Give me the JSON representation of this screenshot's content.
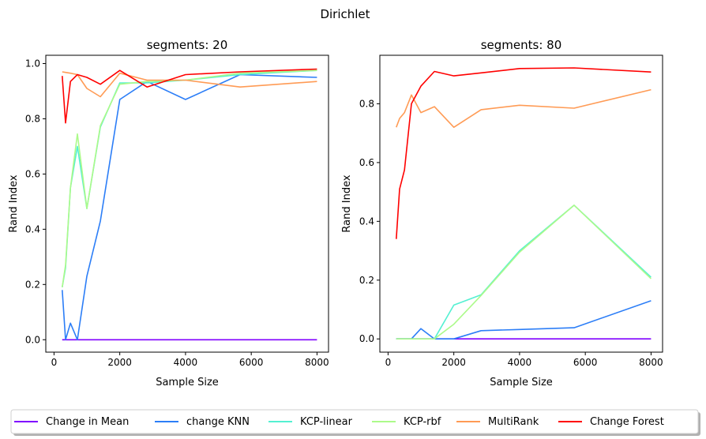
{
  "suptitle": "Dirichlet",
  "colors": {
    "Change in Mean": "#8000ff",
    "change KNN": "#2c7ef7",
    "KCP-linear": "#54f0d2",
    "KCP-rbf": "#acfa8a",
    "MultiRank": "#ff9b55",
    "Change Forest": "#ff0000"
  },
  "legend": {
    "placement": "bottom-center",
    "entries": [
      "Change in Mean",
      "change KNN",
      "KCP-linear",
      "KCP-rbf",
      "MultiRank",
      "Change Forest"
    ]
  },
  "chart_data": [
    {
      "type": "line",
      "title": "segments: 20",
      "xlabel": "Sample Size",
      "ylabel": "Rand Index",
      "xlim": [
        -250,
        8350
      ],
      "ylim": [
        -0.045,
        1.03
      ],
      "xticks": [
        0,
        2000,
        4000,
        6000,
        8000
      ],
      "yticks": [
        0.0,
        0.2,
        0.4,
        0.6,
        0.8,
        1.0
      ],
      "ytick_decimals": 1,
      "grid": false,
      "series": [
        {
          "name": "Change in Mean",
          "x": [
            250,
            350,
            500,
            710,
            1000,
            1410,
            2000,
            2830,
            4000,
            5660,
            8000
          ],
          "y": [
            0.0,
            0.0,
            0.0,
            0.0,
            0.0,
            0.0,
            0.0,
            0.0,
            0.0,
            0.0,
            0.0
          ]
        },
        {
          "name": "change KNN",
          "x": [
            250,
            350,
            500,
            710,
            1000,
            1410,
            2000,
            2830,
            4000,
            5660,
            8000
          ],
          "y": [
            0.18,
            0.0,
            0.06,
            0.0,
            0.23,
            0.43,
            0.87,
            0.935,
            0.87,
            0.96,
            0.95
          ]
        },
        {
          "name": "KCP-linear",
          "x": [
            250,
            350,
            500,
            710,
            1000,
            1410,
            2000,
            2830,
            4000,
            5660,
            8000
          ],
          "y": [
            0.19,
            0.26,
            0.55,
            0.7,
            0.475,
            0.77,
            0.93,
            0.93,
            0.94,
            0.96,
            0.975
          ]
        },
        {
          "name": "KCP-rbf",
          "x": [
            250,
            350,
            500,
            710,
            1000,
            1410,
            2000,
            2830,
            4000,
            5660,
            8000
          ],
          "y": [
            0.19,
            0.27,
            0.55,
            0.745,
            0.475,
            0.775,
            0.925,
            0.935,
            0.94,
            0.965,
            0.975
          ]
        },
        {
          "name": "MultiRank",
          "x": [
            250,
            350,
            500,
            710,
            1000,
            1410,
            2000,
            2830,
            4000,
            5660,
            8000
          ],
          "y": [
            0.97,
            0.968,
            0.965,
            0.96,
            0.91,
            0.88,
            0.965,
            0.94,
            0.94,
            0.915,
            0.935
          ]
        },
        {
          "name": "Change Forest",
          "x": [
            250,
            350,
            500,
            710,
            1000,
            1410,
            2000,
            2830,
            4000,
            5660,
            8000
          ],
          "y": [
            0.955,
            0.785,
            0.935,
            0.96,
            0.95,
            0.925,
            0.975,
            0.915,
            0.96,
            0.97,
            0.98
          ]
        }
      ]
    },
    {
      "type": "line",
      "title": "segments: 80",
      "xlabel": "Sample Size",
      "ylabel": "Rand Index",
      "xlim": [
        -250,
        8350
      ],
      "ylim": [
        -0.045,
        0.965
      ],
      "xticks": [
        0,
        2000,
        4000,
        6000,
        8000
      ],
      "yticks": [
        0.0,
        0.2,
        0.4,
        0.6,
        0.8
      ],
      "ytick_decimals": 1,
      "grid": false,
      "series": [
        {
          "name": "Change in Mean",
          "x": [
            250,
            350,
            500,
            710,
            1000,
            1410,
            2000,
            2830,
            4000,
            5660,
            8000
          ],
          "y": [
            0.0,
            0.0,
            0.0,
            0.0,
            0.0,
            0.0,
            0.0,
            0.0,
            0.0,
            0.0,
            0.0
          ]
        },
        {
          "name": "change KNN",
          "x": [
            250,
            350,
            500,
            710,
            1000,
            1410,
            2000,
            2830,
            4000,
            5660,
            8000
          ],
          "y": [
            0.0,
            0.0,
            0.0,
            0.0,
            0.035,
            0.0,
            0.0,
            0.028,
            0.032,
            0.038,
            0.13
          ]
        },
        {
          "name": "KCP-linear",
          "x": [
            250,
            350,
            500,
            710,
            1000,
            1410,
            2000,
            2830,
            4000,
            5660,
            8000
          ],
          "y": [
            0.0,
            0.0,
            0.0,
            0.0,
            0.0,
            0.0,
            0.115,
            0.15,
            0.3,
            0.455,
            0.21
          ]
        },
        {
          "name": "KCP-rbf",
          "x": [
            250,
            350,
            500,
            710,
            1000,
            1410,
            2000,
            2830,
            4000,
            5660,
            8000
          ],
          "y": [
            0.0,
            0.0,
            0.0,
            0.0,
            0.0,
            0.0,
            0.05,
            0.148,
            0.295,
            0.455,
            0.205
          ]
        },
        {
          "name": "MultiRank",
          "x": [
            250,
            350,
            500,
            710,
            1000,
            1410,
            2000,
            2830,
            4000,
            5660,
            8000
          ],
          "y": [
            0.72,
            0.75,
            0.77,
            0.83,
            0.77,
            0.79,
            0.72,
            0.78,
            0.795,
            0.785,
            0.848
          ]
        },
        {
          "name": "Change Forest",
          "x": [
            250,
            350,
            500,
            710,
            1000,
            1410,
            2000,
            2830,
            4000,
            5660,
            8000
          ],
          "y": [
            0.34,
            0.51,
            0.575,
            0.8,
            0.86,
            0.91,
            0.895,
            0.905,
            0.92,
            0.922,
            0.908
          ]
        }
      ]
    }
  ]
}
